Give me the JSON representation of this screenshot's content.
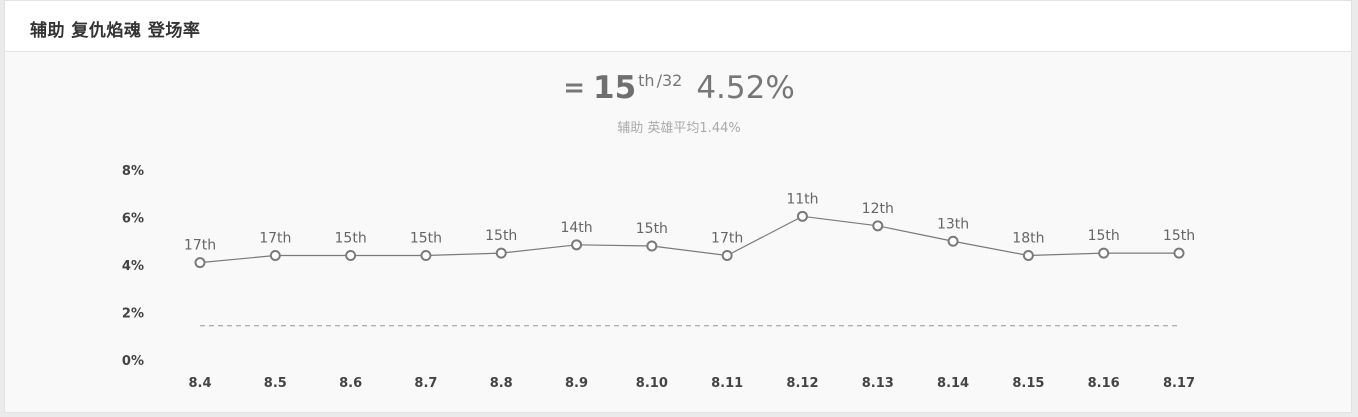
{
  "header": {
    "title": "辅助 复仇焰魂 登场率"
  },
  "summary": {
    "rank_prefix": "=",
    "rank": "15",
    "rank_suffix": "th",
    "rank_total": "/32",
    "rate": "4.52%",
    "average_text": "辅助 英雄平均1.44%"
  },
  "colors": {
    "line": "#7a7a7a",
    "marker_fill": "#ffffff",
    "average_line": "#999999",
    "label": "#666666",
    "axis_text": "#444444"
  },
  "chart_data": {
    "type": "line",
    "title": "辅助 复仇焰魂 登场率",
    "xlabel": "",
    "ylabel": "",
    "categories": [
      "8.4",
      "8.5",
      "8.6",
      "8.7",
      "8.8",
      "8.9",
      "8.10",
      "8.11",
      "8.12",
      "8.13",
      "8.14",
      "8.15",
      "8.16",
      "8.17"
    ],
    "series": [
      {
        "name": "登场率",
        "values": [
          4.1,
          4.4,
          4.4,
          4.4,
          4.5,
          4.85,
          4.8,
          4.4,
          6.05,
          5.65,
          5.0,
          4.4,
          4.5,
          4.5
        ],
        "labels": [
          "17th",
          "17th",
          "15th",
          "15th",
          "15th",
          "14th",
          "15th",
          "17th",
          "11th",
          "12th",
          "13th",
          "18th",
          "15th",
          "15th"
        ]
      }
    ],
    "average": {
      "name": "辅助 英雄平均",
      "value": 1.44
    },
    "ylim": [
      0,
      8
    ],
    "yticks": [
      0,
      2,
      4,
      6,
      8
    ],
    "ytick_labels": [
      "0%",
      "2%",
      "4%",
      "6%",
      "8%"
    ],
    "grid": false
  }
}
